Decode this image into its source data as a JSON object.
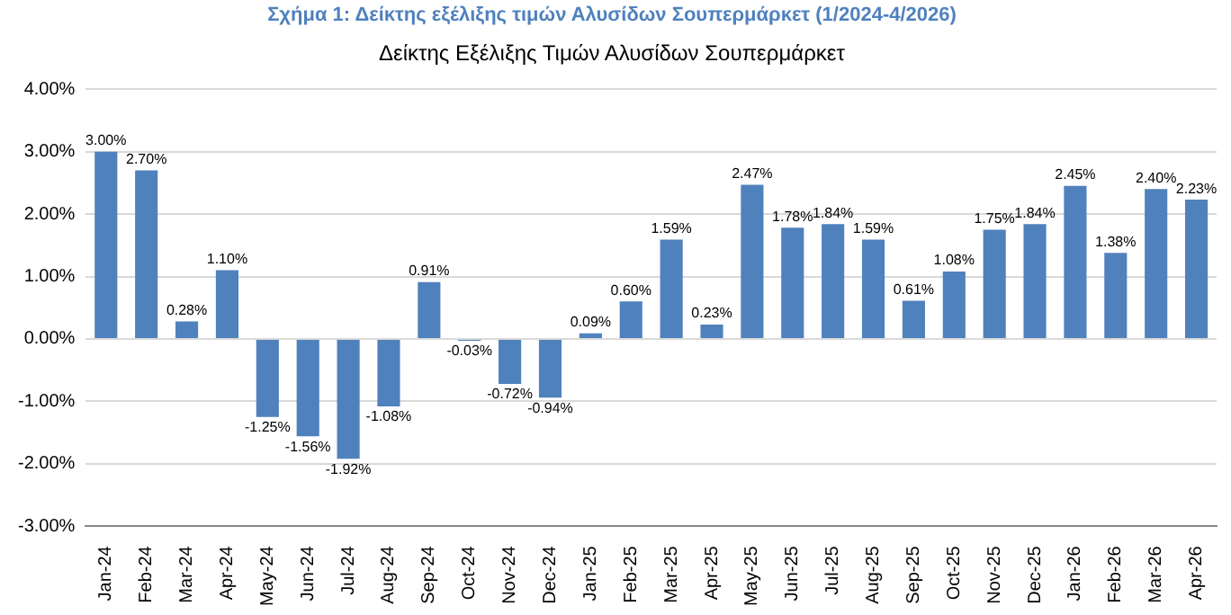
{
  "chart_data": {
    "type": "bar",
    "title": "Σχήμα 1: Δείκτης εξέλιξης τιμών Αλυσίδων Σουπερμάρκετ (1/2024-4/2026)",
    "subtitle": "Δείκτης Εξέλιξης Τιμών Αλυσίδων Σουπερμάρκετ",
    "categories": [
      "Jan-24",
      "Feb-24",
      "Mar-24",
      "Apr-24",
      "May-24",
      "Jun-24",
      "Jul-24",
      "Aug-24",
      "Sep-24",
      "Oct-24",
      "Nov-24",
      "Dec-24",
      "Jan-25",
      "Feb-25",
      "Mar-25",
      "Apr-25",
      "May-25",
      "Jun-25",
      "Jul-25",
      "Aug-25",
      "Sep-25",
      "Oct-25",
      "Nov-25",
      "Dec-25",
      "Jan-26",
      "Feb-26",
      "Mar-26",
      "Apr-26"
    ],
    "values": [
      3.0,
      2.7,
      0.28,
      1.1,
      -1.25,
      -1.56,
      -1.92,
      -1.08,
      0.91,
      -0.03,
      -0.72,
      -0.94,
      0.09,
      0.6,
      1.59,
      0.23,
      2.47,
      1.78,
      1.84,
      1.59,
      0.61,
      1.08,
      1.75,
      1.84,
      2.45,
      1.38,
      2.4,
      2.23
    ],
    "value_labels": [
      "3.00%",
      "2.70%",
      "0.28%",
      "1.10%",
      "-1.25%",
      "-1.56%",
      "-1.92%",
      "-1.08%",
      "0.91%",
      "-0.03%",
      "-0.72%",
      "-0.94%",
      "0.09%",
      "0.60%",
      "1.59%",
      "0.23%",
      "2.47%",
      "1.78%",
      "1.84%",
      "1.59%",
      "0.61%",
      "1.08%",
      "1.75%",
      "1.84%",
      "2.45%",
      "1.38%",
      "2.40%",
      "2.23%"
    ],
    "color": "#4f81bd",
    "ylim": [
      -3,
      4
    ],
    "yticks": [
      {
        "value": -3,
        "label": "-3.00%"
      },
      {
        "value": -2,
        "label": "-2.00%"
      },
      {
        "value": -1,
        "label": "-1.00%"
      },
      {
        "value": 0,
        "label": "0.00%"
      },
      {
        "value": 1,
        "label": "1.00%"
      },
      {
        "value": 2,
        "label": "2.00%"
      },
      {
        "value": 3,
        "label": "3.00%"
      },
      {
        "value": 4,
        "label": "4.00%"
      }
    ],
    "grid": "y"
  }
}
